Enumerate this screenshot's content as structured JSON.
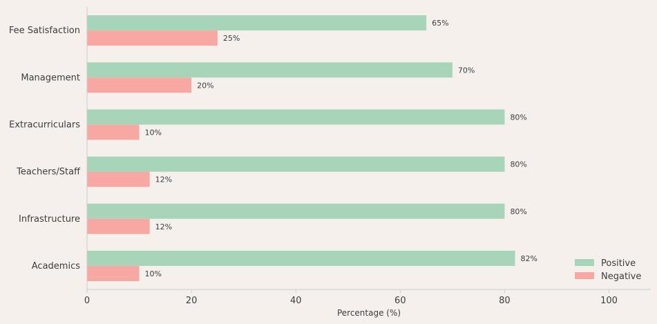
{
  "chart_data": {
    "type": "bar",
    "orientation": "horizontal",
    "categories": [
      "Fee Satisfaction",
      "Management",
      "Extracurriculars",
      "Teachers/Staff",
      "Infrastructure",
      "Academics"
    ],
    "series": [
      {
        "name": "Positive",
        "values": [
          65,
          70,
          80,
          80,
          80,
          82
        ],
        "color": "#a8d5ba"
      },
      {
        "name": "Negative",
        "values": [
          25,
          20,
          10,
          12,
          12,
          10
        ],
        "color": "#f7a8a3"
      }
    ],
    "value_suffix": "%",
    "xlabel": "Percentage (%)",
    "xlim": [
      0,
      108
    ],
    "xticks": [
      0,
      20,
      40,
      60,
      80,
      100
    ],
    "grid": false,
    "legend_position": "bottom-right"
  }
}
